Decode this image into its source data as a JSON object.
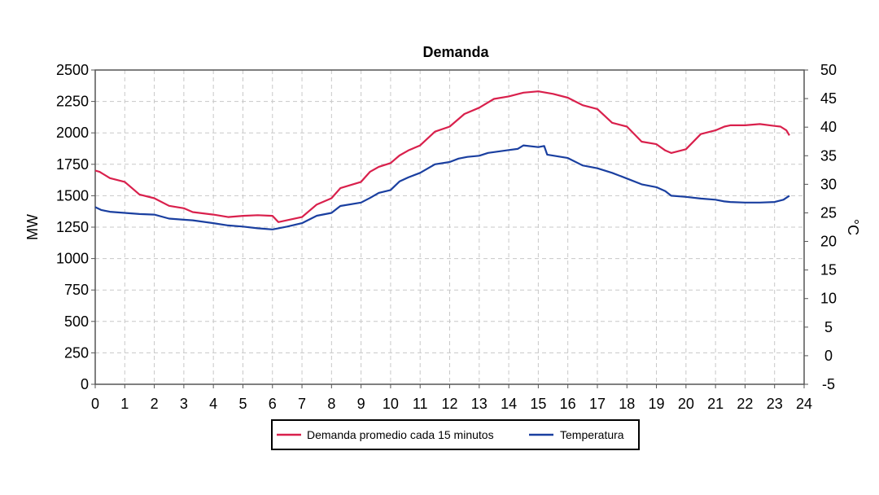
{
  "chart_data": {
    "type": "line",
    "title": "Demanda",
    "xlabel": "",
    "ylabel_left": "MW",
    "ylabel_right": "°C",
    "x_ticks": [
      "0",
      "1",
      "2",
      "3",
      "4",
      "5",
      "6",
      "7",
      "8",
      "9",
      "10",
      "11",
      "12",
      "13",
      "14",
      "15",
      "16",
      "17",
      "18",
      "19",
      "20",
      "21",
      "22",
      "23",
      "24"
    ],
    "y_left_ticks": [
      "0",
      "250",
      "500",
      "750",
      "1000",
      "1250",
      "1500",
      "1750",
      "2000",
      "2250",
      "2500"
    ],
    "y_right_ticks": [
      "-5",
      "0",
      "5",
      "10",
      "15",
      "20",
      "25",
      "30",
      "35",
      "40",
      "45",
      "50"
    ],
    "xlim": [
      0,
      24
    ],
    "ylim_left": [
      0,
      2500
    ],
    "ylim_right": [
      -5,
      50
    ],
    "grid": true,
    "legend_position": "bottom",
    "series": [
      {
        "name": "Demanda promedio cada 15 minutos",
        "axis": "left",
        "color": "#d9204c",
        "x": [
          0,
          0.15,
          0.5,
          1,
          1.5,
          2,
          2.5,
          3,
          3.3,
          4,
          4.5,
          5,
          5.5,
          6,
          6.2,
          7,
          7.5,
          8,
          8.3,
          9,
          9.3,
          9.6,
          10,
          10.3,
          10.6,
          11,
          11.5,
          12,
          12.5,
          13,
          13.5,
          14,
          14.5,
          15,
          15.5,
          16,
          16.5,
          17,
          17.5,
          18,
          18.5,
          19,
          19.3,
          19.5,
          20,
          20.5,
          21,
          21.3,
          21.5,
          22,
          22.5,
          23,
          23.2,
          23.4,
          23.5
        ],
        "y": [
          1700,
          1690,
          1640,
          1610,
          1510,
          1480,
          1420,
          1400,
          1370,
          1350,
          1330,
          1340,
          1345,
          1340,
          1290,
          1330,
          1430,
          1480,
          1560,
          1610,
          1690,
          1730,
          1760,
          1820,
          1860,
          1900,
          2010,
          2050,
          2150,
          2200,
          2270,
          2290,
          2320,
          2330,
          2310,
          2280,
          2220,
          2190,
          2080,
          2050,
          1930,
          1910,
          1860,
          1840,
          1870,
          1990,
          2020,
          2050,
          2060,
          2060,
          2070,
          2055,
          2050,
          2020,
          1980
        ]
      },
      {
        "name": "Temperatura",
        "axis": "right",
        "color": "#1a3fa0",
        "x": [
          0,
          0.2,
          0.5,
          1,
          1.5,
          2,
          2.5,
          3,
          3.3,
          4,
          4.5,
          5,
          5.5,
          6,
          6.2,
          6.5,
          7,
          7.5,
          8,
          8.3,
          9,
          9.3,
          9.6,
          10,
          10.3,
          10.6,
          11,
          11.5,
          12,
          12.3,
          12.6,
          13,
          13.3,
          14,
          14.3,
          14.5,
          15,
          15.2,
          15.3,
          16,
          16.5,
          17,
          17.5,
          18,
          18.5,
          19,
          19.3,
          19.5,
          20,
          20.5,
          21,
          21.3,
          21.5,
          22,
          22.5,
          23,
          23.3,
          23.5
        ],
        "y": [
          26,
          25.5,
          25.2,
          25,
          24.8,
          24.7,
          24,
          23.8,
          23.7,
          23.2,
          22.8,
          22.6,
          22.3,
          22.1,
          22.3,
          22.6,
          23.2,
          24.5,
          25,
          26.2,
          26.8,
          27.6,
          28.5,
          29,
          30.5,
          31.2,
          32,
          33.5,
          33.9,
          34.5,
          34.8,
          35,
          35.5,
          36,
          36.2,
          36.8,
          36.5,
          36.7,
          35.2,
          34.6,
          33.3,
          32.8,
          32,
          31,
          30,
          29.5,
          28.8,
          28,
          27.8,
          27.5,
          27.3,
          27,
          26.9,
          26.8,
          26.8,
          26.9,
          27.3,
          28
        ]
      }
    ]
  }
}
